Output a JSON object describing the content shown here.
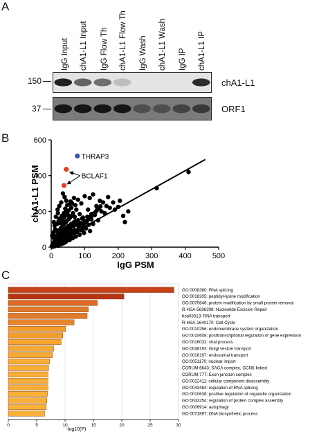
{
  "panels": {
    "a": "A",
    "b": "B",
    "c": "C"
  },
  "western_blot": {
    "lanes": [
      "IgG Input",
      "chA1-L1 Input",
      "IgG Flow Th",
      "chA1-L1 Flow Th",
      "IgG Wash",
      "chA1-L1 Wash",
      "IgG IP",
      "chA1-L1 IP"
    ],
    "rows": [
      {
        "marker": "150",
        "label": "chA1-L1"
      },
      {
        "marker": "37",
        "label": "ORF1"
      }
    ],
    "band_intensity": {
      "chA1-L1": [
        0.9,
        0.6,
        0.55,
        0.2,
        0,
        0,
        0,
        0.85
      ],
      "ORF1": [
        0.95,
        0.95,
        0.95,
        0.95,
        0.7,
        0.7,
        0.75,
        0.8
      ]
    }
  },
  "chart_data": [
    {
      "type": "scatter",
      "title": "",
      "xlabel": "IgG PSM",
      "ylabel": "chA1-L1 PSM",
      "xlim": [
        0,
        500
      ],
      "ylim": [
        0,
        600
      ],
      "xticks": [
        "0",
        "100",
        "200",
        "300",
        "400",
        "500"
      ],
      "yticks": [
        "0",
        "200",
        "400",
        "600"
      ],
      "grid": false,
      "fit_line": {
        "x": [
          0,
          460
        ],
        "y": [
          10,
          490
        ]
      },
      "highlights": [
        {
          "name": "THRAP3",
          "x": 78,
          "y": 510,
          "color": "#3b55a6"
        },
        {
          "name": "BCLAF1",
          "x": 45,
          "y": 435,
          "color": "#e2401c"
        },
        {
          "name": "BCLAF1",
          "x": 38,
          "y": 345,
          "color": "#e2401c"
        }
      ],
      "points": [
        [
          2,
          5
        ],
        [
          3,
          10
        ],
        [
          4,
          2
        ],
        [
          5,
          18
        ],
        [
          6,
          8
        ],
        [
          7,
          25
        ],
        [
          8,
          12
        ],
        [
          9,
          30
        ],
        [
          10,
          5
        ],
        [
          11,
          40
        ],
        [
          12,
          20
        ],
        [
          13,
          15
        ],
        [
          14,
          35
        ],
        [
          15,
          10
        ],
        [
          16,
          45
        ],
        [
          17,
          28
        ],
        [
          18,
          55
        ],
        [
          19,
          22
        ],
        [
          20,
          38
        ],
        [
          21,
          8
        ],
        [
          22,
          60
        ],
        [
          23,
          30
        ],
        [
          24,
          48
        ],
        [
          25,
          15
        ],
        [
          26,
          70
        ],
        [
          27,
          40
        ],
        [
          28,
          25
        ],
        [
          29,
          52
        ],
        [
          30,
          65
        ],
        [
          31,
          18
        ],
        [
          32,
          80
        ],
        [
          33,
          42
        ],
        [
          34,
          30
        ],
        [
          35,
          58
        ],
        [
          36,
          90
        ],
        [
          37,
          22
        ],
        [
          38,
          50
        ],
        [
          39,
          75
        ],
        [
          40,
          35
        ],
        [
          41,
          100
        ],
        [
          42,
          60
        ],
        [
          43,
          28
        ],
        [
          44,
          85
        ],
        [
          45,
          45
        ],
        [
          46,
          110
        ],
        [
          47,
          70
        ],
        [
          48,
          38
        ],
        [
          49,
          95
        ],
        [
          50,
          55
        ],
        [
          52,
          120
        ],
        [
          54,
          80
        ],
        [
          55,
          40
        ],
        [
          56,
          105
        ],
        [
          58,
          65
        ],
        [
          60,
          130
        ],
        [
          62,
          90
        ],
        [
          64,
          50
        ],
        [
          66,
          115
        ],
        [
          68,
          75
        ],
        [
          70,
          140
        ],
        [
          72,
          95
        ],
        [
          74,
          60
        ],
        [
          76,
          125
        ],
        [
          78,
          85
        ],
        [
          80,
          150
        ],
        [
          82,
          105
        ],
        [
          85,
          70
        ],
        [
          88,
          135
        ],
        [
          90,
          95
        ],
        [
          92,
          160
        ],
        [
          95,
          115
        ],
        [
          98,
          80
        ],
        [
          100,
          145
        ],
        [
          104,
          105
        ],
        [
          108,
          170
        ],
        [
          112,
          125
        ],
        [
          116,
          90
        ],
        [
          120,
          155
        ],
        [
          125,
          130
        ],
        [
          130,
          180
        ],
        [
          140,
          150
        ],
        [
          150,
          200
        ],
        [
          160,
          190
        ],
        [
          175,
          220
        ],
        [
          190,
          210
        ],
        [
          205,
          260
        ],
        [
          215,
          175
        ],
        [
          220,
          140
        ],
        [
          230,
          200
        ],
        [
          30,
          110
        ],
        [
          35,
          150
        ],
        [
          40,
          170
        ],
        [
          45,
          200
        ],
        [
          50,
          180
        ],
        [
          25,
          160
        ],
        [
          20,
          190
        ],
        [
          15,
          95
        ],
        [
          10,
          120
        ],
        [
          60,
          220
        ],
        [
          55,
          240
        ],
        [
          45,
          260
        ],
        [
          40,
          280
        ],
        [
          35,
          300
        ],
        [
          30,
          250
        ],
        [
          65,
          190
        ],
        [
          70,
          170
        ],
        [
          75,
          210
        ],
        [
          85,
          185
        ],
        [
          95,
          165
        ],
        [
          110,
          210
        ],
        [
          120,
          185
        ],
        [
          135,
          230
        ],
        [
          145,
          260
        ],
        [
          155,
          250
        ],
        [
          165,
          230
        ],
        [
          185,
          250
        ],
        [
          200,
          225
        ],
        [
          315,
          330
        ],
        [
          410,
          420
        ],
        [
          5,
          55
        ],
        [
          8,
          85
        ],
        [
          12,
          100
        ],
        [
          18,
          130
        ],
        [
          22,
          145
        ],
        [
          28,
          135
        ],
        [
          32,
          175
        ],
        [
          38,
          190
        ],
        [
          42,
          215
        ],
        [
          48,
          235
        ],
        [
          52,
          205
        ],
        [
          58,
          255
        ],
        [
          62,
          245
        ],
        [
          68,
          275
        ],
        [
          72,
          235
        ],
        [
          80,
          265
        ],
        [
          90,
          245
        ],
        [
          100,
          285
        ],
        [
          115,
          275
        ],
        [
          125,
          295
        ],
        [
          170,
          280
        ],
        [
          3,
          65
        ],
        [
          6,
          75
        ],
        [
          9,
          50
        ],
        [
          14,
          62
        ],
        [
          17,
          90
        ],
        [
          21,
          72
        ],
        [
          26,
          98
        ],
        [
          29,
          88
        ],
        [
          33,
          112
        ],
        [
          37,
          128
        ],
        [
          43,
          138
        ],
        [
          47,
          148
        ],
        [
          53,
          158
        ],
        [
          57,
          168
        ],
        [
          63,
          178
        ],
        [
          67,
          138
        ],
        [
          73,
          148
        ],
        [
          77,
          128
        ],
        [
          83,
          118
        ],
        [
          87,
          108
        ],
        [
          93,
          98
        ],
        [
          97,
          128
        ],
        [
          103,
          138
        ],
        [
          107,
          148
        ],
        [
          113,
          158
        ],
        [
          117,
          168
        ],
        [
          123,
          178
        ],
        [
          127,
          188
        ],
        [
          133,
          198
        ],
        [
          137,
          208
        ],
        [
          143,
          218
        ],
        [
          147,
          228
        ],
        [
          8,
          140
        ],
        [
          14,
          170
        ],
        [
          19,
          210
        ],
        [
          24,
          230
        ]
      ]
    },
    {
      "type": "bar",
      "orientation": "horizontal",
      "title": "",
      "xlabel": "-log10(P)",
      "xlim": [
        0,
        30
      ],
      "xticks": [
        "0",
        "5",
        "10",
        "15",
        "20",
        "25",
        "30"
      ],
      "categories": [
        "GO:0008380: RNA splicing",
        "GO:0018205: peptidyl-lysine modification",
        "GO:0070646: protein modification by small protein removal",
        "R-HSA-5696398: Nucleotide Excision Repair",
        "hsa03013: RNA transport",
        "R-HSA-1640170: Cell Cycle",
        "GO:0010256: endomembrane system organization",
        "GO:0010608: posttranscriptional regulation of gene expression",
        "GO:0016032: viral process",
        "GO:0048193: Golgi vesicle transport",
        "GO:0016197: endosomal transport",
        "GO:0051170: nuclear import",
        "CORUM:6643: SAGA complex, GCN5-linked",
        "CORUM:777: Exon junction complex",
        "GO:0022411: cellular component disassembly",
        "GO:0043484: regulation of RNA splicing",
        "GO:0010638: positive regulation of organelle organization",
        "GO:0043254: regulation of protein complex assembly",
        "GO:0006914: autophagy",
        "GO:0071897: DNA biosynthetic process"
      ],
      "values": [
        29.2,
        20.4,
        15.7,
        14.1,
        13.9,
        11.6,
        10.1,
        9.6,
        9.3,
        8.0,
        7.8,
        7.3,
        7.1,
        7.0,
        7.0,
        7.0,
        6.9,
        6.8,
        6.7,
        6.4
      ],
      "colors": [
        "#c6421b",
        "#b73612",
        "#de6a25",
        "#e07a2c",
        "#e07a2c",
        "#e8852f",
        "#f39c2e",
        "#f39c2e",
        "#f5a331",
        "#f6a935",
        "#f6a935",
        "#f7ad37",
        "#f7ad37",
        "#f7ad37",
        "#f7ad37",
        "#f7ad37",
        "#f7b03a",
        "#f7b03a",
        "#f7b03a",
        "#f7b03a"
      ]
    }
  ]
}
